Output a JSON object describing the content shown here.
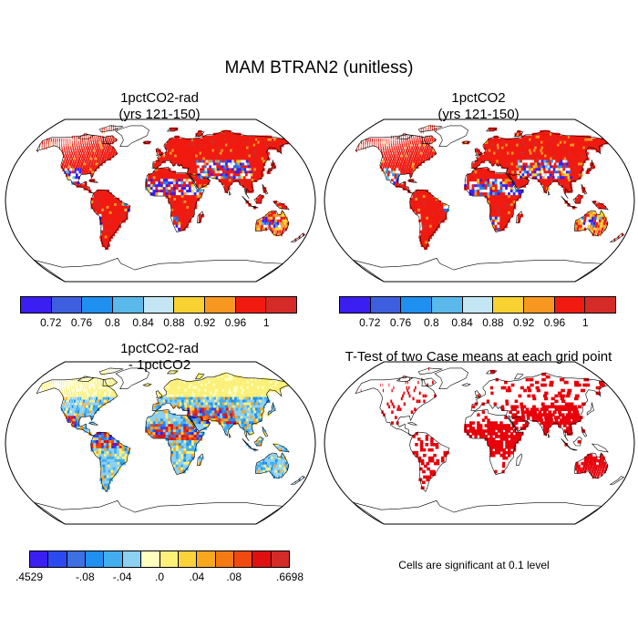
{
  "title": "MAM BTRAN2 (unitless)",
  "panels": [
    {
      "id": "tl",
      "title_line1": "1pctCO2-rad",
      "title_line2": "(yrs 121-150)"
    },
    {
      "id": "tr",
      "title_line1": "1pctCO2",
      "title_line2": "(yrs 121-150)"
    },
    {
      "id": "bl",
      "title_line1": "1pctCO2-rad",
      "title_line2": "- 1pctCO2"
    },
    {
      "id": "br",
      "title_line1": "T-Test of two Case means at each grid point"
    }
  ],
  "colorbars": {
    "absolute": {
      "colors": [
        "#3a1ef2",
        "#3d5fdf",
        "#1f8ff0",
        "#5ab8ea",
        "#c4e6f4",
        "#f9d232",
        "#f89820",
        "#f01a10",
        "#d42a28"
      ],
      "labels": [
        "0.72",
        "0.76",
        "0.8",
        "0.84",
        "0.88",
        "0.92",
        "0.96",
        "1"
      ]
    },
    "difference": {
      "colors": [
        "#3a1ef2",
        "#2b4bf0",
        "#3d70e0",
        "#1f8ff0",
        "#42aef0",
        "#8cd0f2",
        "#ffffc0",
        "#faf07a",
        "#fad23a",
        "#f8a81c",
        "#f47a14",
        "#f04a10",
        "#e01010",
        "#d42a28"
      ],
      "labels": [
        ".4529",
        "-.08",
        "-.04",
        ".0",
        ".04",
        ".08",
        ".6698"
      ]
    }
  },
  "significance_note": "Cells are significant at 0.1 level",
  "legend_colors": {
    "map_border": "#000000",
    "significant": "#e8000b"
  }
}
